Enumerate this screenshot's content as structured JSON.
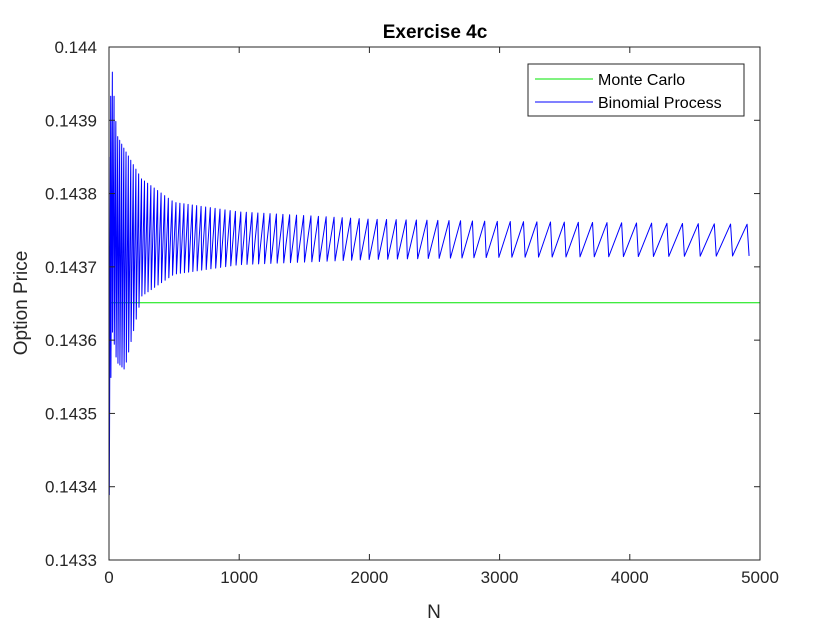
{
  "chart_data": {
    "type": "line",
    "title": "Exercise 4c",
    "xlabel": "N",
    "ylabel": "Option Price",
    "xlim": [
      0,
      5000
    ],
    "ylim": [
      0.1433,
      0.144
    ],
    "xticks": [
      0,
      1000,
      2000,
      3000,
      4000,
      5000
    ],
    "xtick_labels": [
      "0",
      "1000",
      "2000",
      "3000",
      "4000",
      "5000"
    ],
    "yticks": [
      0.1433,
      0.1434,
      0.1435,
      0.1436,
      0.1437,
      0.1438,
      0.1439,
      0.144
    ],
    "ytick_labels": [
      "0.1433",
      "0.1434",
      "0.1435",
      "0.1436",
      "0.1437",
      "0.1438",
      "0.1439",
      "0.144"
    ],
    "grid": false,
    "legend_position": "top-right",
    "series": [
      {
        "name": "Monte Carlo",
        "color": "#00e600",
        "style": "constant",
        "x": [
          1,
          5000
        ],
        "y": [
          0.143651,
          0.143651
        ]
      },
      {
        "name": "Binomial Process",
        "color": "#0000ff",
        "style": "oscillating",
        "x": [
          1,
          20,
          60,
          120,
          250,
          500,
          1000,
          2000,
          3000,
          4000,
          5000
        ],
        "y_upper": [
          0.14385,
          0.14398,
          0.14388,
          0.14386,
          0.14382,
          0.143788,
          0.143775,
          0.143765,
          0.143762,
          0.14376,
          0.143758
        ],
        "y_lower": [
          0.14337,
          0.14362,
          0.14357,
          0.14356,
          0.14366,
          0.14369,
          0.143703,
          0.14371,
          0.143713,
          0.143714,
          0.143715
        ],
        "oscillation_period_x": [
          [
            0,
            12
          ],
          [
            300,
            25
          ],
          [
            1000,
            42
          ],
          [
            2000,
            70
          ],
          [
            3000,
            100
          ],
          [
            4000,
            115
          ],
          [
            5000,
            130
          ]
        ]
      }
    ]
  }
}
